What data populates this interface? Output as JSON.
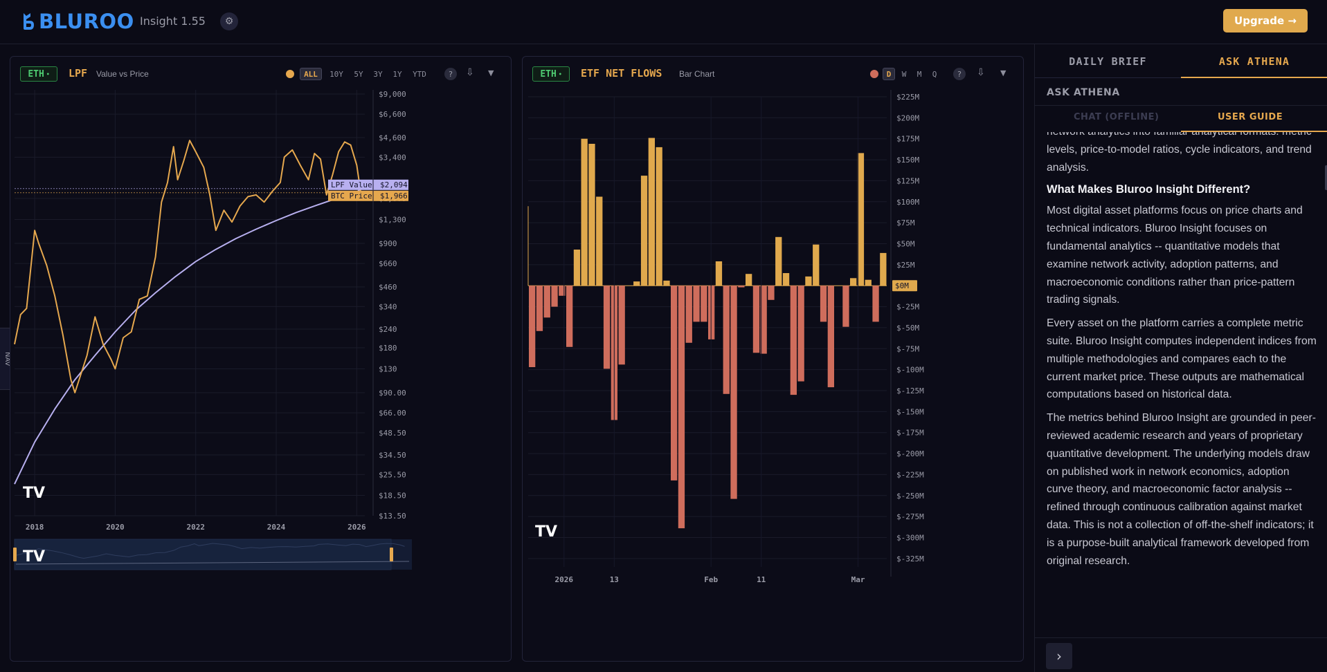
{
  "header": {
    "brand": "BLUROO",
    "app_name": "Insight 1.55",
    "settings_icon": "gear-icon",
    "upgrade_label": "Upgrade →",
    "accent_color": "#e0a94d"
  },
  "nav_tab_label": "NAV",
  "left_panel": {
    "asset": "ETH",
    "title": "LPF",
    "subtitle": "Value vs Price",
    "ranges": [
      "ALL",
      "10Y",
      "5Y",
      "3Y",
      "1Y",
      "YTD"
    ],
    "active_range": "ALL",
    "help_label": "?",
    "chart_data": {
      "type": "line",
      "y_scale": "log",
      "ylim": [
        13.5,
        9000
      ],
      "y_ticks": [
        "$9,000",
        "$6,600",
        "$4,600",
        "$3,400",
        "$1,800",
        "$1,300",
        "$900",
        "$660",
        "$460",
        "$340",
        "$240",
        "$180",
        "$130",
        "$90.00",
        "$66.00",
        "$48.50",
        "$34.50",
        "$25.50",
        "$18.50",
        "$13.50"
      ],
      "x_ticks": [
        "2018",
        "2020",
        "2022",
        "2024",
        "2026"
      ],
      "series": [
        {
          "name": "LPF Value",
          "color": "#b8b0f0",
          "last_label": "$2,094",
          "x": [
            2017.5,
            2018.0,
            2018.5,
            2019.0,
            2019.5,
            2020.0,
            2020.5,
            2021.0,
            2021.5,
            2022.0,
            2022.5,
            2023.0,
            2023.5,
            2024.0,
            2024.5,
            2025.0,
            2025.5,
            2026.0,
            2026.1
          ],
          "values": [
            22,
            42,
            70,
            110,
            160,
            230,
            320,
            420,
            540,
            680,
            820,
            970,
            1120,
            1280,
            1450,
            1620,
            1800,
            1980,
            2094
          ]
        },
        {
          "name": "BTC Price",
          "color": "#e6a84e",
          "last_label": "$1,966",
          "x": [
            2017.5,
            2017.65,
            2017.8,
            2018.0,
            2018.1,
            2018.3,
            2018.5,
            2018.7,
            2018.9,
            2019.0,
            2019.3,
            2019.5,
            2019.7,
            2019.9,
            2020.0,
            2020.2,
            2020.4,
            2020.6,
            2020.8,
            2021.0,
            2021.15,
            2021.3,
            2021.45,
            2021.55,
            2021.7,
            2021.85,
            2022.0,
            2022.2,
            2022.35,
            2022.5,
            2022.7,
            2022.9,
            2023.1,
            2023.3,
            2023.5,
            2023.7,
            2023.9,
            2024.1,
            2024.2,
            2024.4,
            2024.6,
            2024.8,
            2024.95,
            2025.1,
            2025.25,
            2025.4,
            2025.55,
            2025.7,
            2025.85,
            2026.0,
            2026.1
          ],
          "values": [
            190,
            300,
            330,
            1100,
            900,
            640,
            400,
            220,
            110,
            90,
            160,
            290,
            190,
            150,
            130,
            210,
            230,
            380,
            400,
            730,
            1700,
            2300,
            4000,
            2400,
            3200,
            4400,
            3700,
            2900,
            1900,
            1100,
            1500,
            1250,
            1600,
            1850,
            1900,
            1700,
            2000,
            2300,
            3400,
            3800,
            3000,
            2400,
            3600,
            3300,
            1900,
            2600,
            3700,
            4300,
            4100,
            3000,
            1966
          ]
        }
      ]
    },
    "navigator_logo": "tradingview-logo"
  },
  "right_panel": {
    "asset": "ETH",
    "title": "ETF NET FLOWS",
    "subtitle": "Bar Chart",
    "periods": [
      "D",
      "W",
      "M",
      "Q"
    ],
    "active_period": "D",
    "help_label": "?",
    "zero_label": "$0M",
    "chart_data": {
      "type": "bar",
      "ylim": [
        -335,
        225
      ],
      "y_ticks": [
        "$225M",
        "$200M",
        "$175M",
        "$150M",
        "$125M",
        "$100M",
        "$75M",
        "$50M",
        "$25M",
        "$0M",
        "$-25M",
        "$-50M",
        "$-75M",
        "$-100M",
        "$-125M",
        "$-150M",
        "$-175M",
        "$-200M",
        "$-225M",
        "$-250M",
        "$-275M",
        "$-300M",
        "$-325M"
      ],
      "x_ticks": [
        "2026",
        "13",
        "Feb",
        "11",
        "Mar"
      ],
      "colors": {
        "positive": "#e0a94d",
        "negative": "#cf6d5c"
      },
      "values": [
        -97,
        -54,
        -38,
        -25,
        -12,
        -73,
        43,
        175,
        169,
        106,
        -99,
        -160,
        -94,
        0,
        5,
        131,
        176,
        165,
        6,
        -232,
        -289,
        -68,
        -43,
        -43,
        -64,
        29,
        -129,
        -254,
        -2,
        14,
        -80,
        -81,
        -17,
        58,
        15,
        -130,
        -114,
        11,
        49,
        -43,
        -121,
        0,
        -49,
        9,
        158,
        7,
        -43,
        39
      ]
    },
    "corner_logo": "tradingview-logo"
  },
  "sidebar": {
    "tabs": [
      "DAILY BRIEF",
      "ASK ATHENA"
    ],
    "active_tab": "ASK ATHENA",
    "section_title": "ASK ATHENA",
    "subtabs": [
      "CHAT (OFFLINE)",
      "USER GUIDE"
    ],
    "active_subtab": "USER GUIDE",
    "guide": {
      "intro_partial": "network analytics into familiar analytical formats: metric levels, price-to-model ratios, cycle indicators, and trend analysis.",
      "heading": "What Makes Bluroo Insight Different?",
      "p1": "Most digital asset platforms focus on price charts and technical indicators. Bluroo Insight focuses on fundamental analytics -- quantitative models that examine network activity, adoption patterns, and macroeconomic conditions rather than price-pattern trading signals.",
      "p2": "Every asset on the platform carries a complete metric suite. Bluroo Insight computes independent indices from multiple methodologies and compares each to the current market price. These outputs are mathematical computations based on historical data.",
      "p3": "The metrics behind Bluroo Insight are grounded in peer-reviewed academic research and years of proprietary quantitative development. The underlying models draw on published work in network economics, adoption curve theory, and macroeconomic factor analysis -- refined through continuous calibration against market data. This is not a collection of off-the-shelf indicators; it is a purpose-built analytical framework developed from original research."
    },
    "collapse_icon": "chevron-right-icon"
  }
}
